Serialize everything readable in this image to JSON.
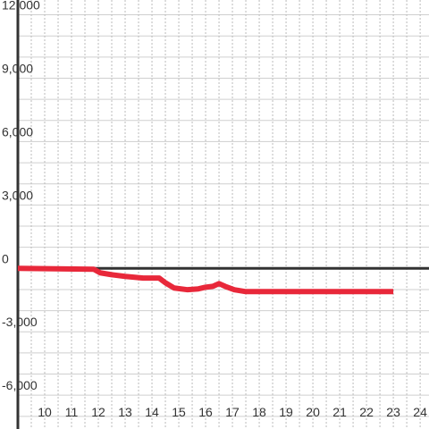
{
  "chart_data": {
    "type": "line",
    "x": [
      9,
      11.83,
      12.07,
      12.5,
      13,
      13.67,
      14.27,
      14.5,
      14.83,
      15.33,
      15.73,
      16,
      16.27,
      16.5,
      16.73,
      17.07,
      17.5,
      23
    ],
    "series": [
      {
        "color": "#e8283a",
        "values": [
          0,
          -40,
          -210,
          -300,
          -380,
          -460,
          -460,
          -680,
          -930,
          -1010,
          -970,
          -890,
          -850,
          -720,
          -850,
          -1010,
          -1100,
          -1100
        ]
      }
    ],
    "xlim": [
      9,
      24.33
    ],
    "xticks": [
      10,
      11,
      12,
      13,
      14,
      15,
      16,
      17,
      18,
      19,
      20,
      21,
      22,
      23,
      24
    ],
    "xminorticks": [
      9.5,
      10,
      10.5,
      11,
      11.5,
      12,
      12.5,
      13,
      13.5,
      14,
      14.5,
      15,
      15.5,
      16,
      16.5,
      17,
      17.5,
      18,
      18.5,
      19,
      19.5,
      20,
      20.5,
      21,
      21.5,
      22,
      22.5,
      23,
      23.5,
      24
    ],
    "ylim": [
      -7600,
      12700
    ],
    "yticks": [
      {
        "value": -6000,
        "label": "-6,000"
      },
      {
        "value": -3000,
        "label": "-3,000"
      },
      0,
      {
        "value": 3000,
        "label": "3,000"
      },
      {
        "value": 6000,
        "label": "6,000"
      },
      {
        "value": 9000,
        "label": "9,000"
      },
      {
        "value": 12000,
        "label": "12,000"
      }
    ],
    "yminorticks": [
      -7000,
      -6000,
      -5000,
      -4000,
      -3000,
      -2000,
      -1000,
      1000,
      2000,
      3000,
      4000,
      5000,
      6000,
      7000,
      8000,
      9000,
      10000,
      11000,
      12000
    ],
    "grid": true
  }
}
